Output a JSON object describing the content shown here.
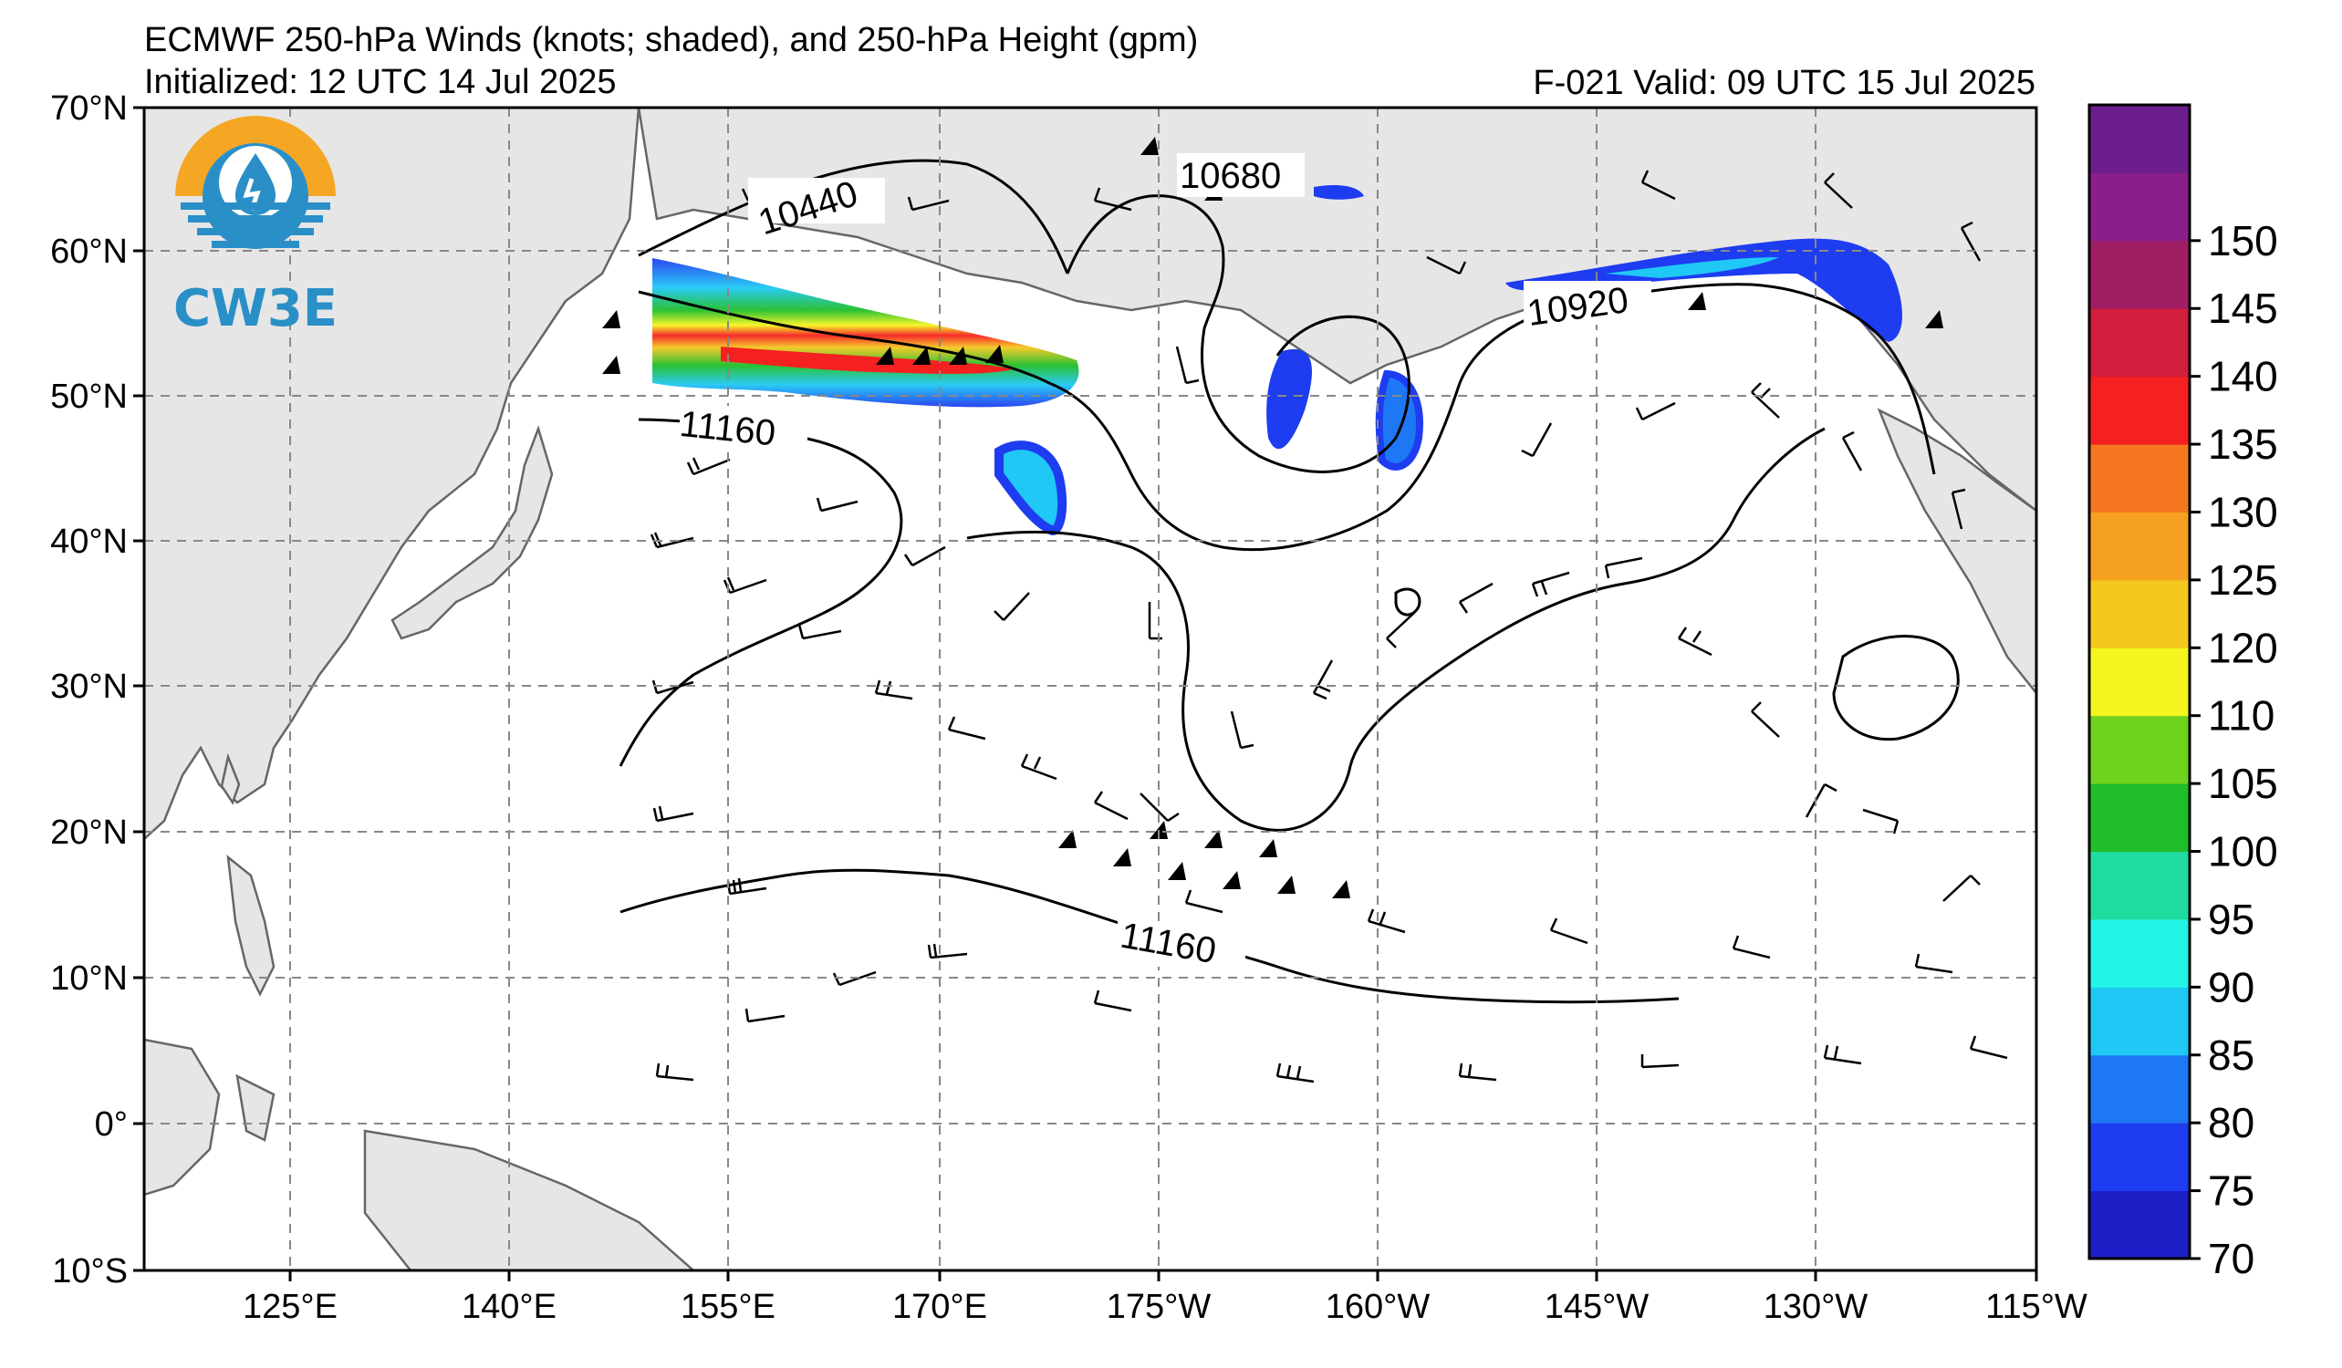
{
  "header": {
    "title": "ECMWF 250-hPa Winds (knots; shaded), and 250-hPa Height (gpm)",
    "initialized": "Initialized: 12 UTC 14 Jul 2025",
    "valid": "F-021  Valid: 09 UTC 15 Jul 2025"
  },
  "logo": {
    "text": "CW3E",
    "colors": {
      "sun": "#f5a623",
      "sea": "#2a8fc7"
    }
  },
  "map": {
    "lat_labels": [
      "70°N",
      "60°N",
      "50°N",
      "40°N",
      "30°N",
      "20°N",
      "10°N",
      "0°",
      "10°S"
    ],
    "lon_labels": [
      "125°E",
      "140°E",
      "155°E",
      "170°E",
      "175°W",
      "160°W",
      "145°W",
      "130°W",
      "115°W"
    ],
    "contour_labels": [
      "10440",
      "10680",
      "10920",
      "11160",
      "11160"
    ],
    "land_color": "#e6e6e6",
    "grid_style": "dashed gray"
  },
  "colorbar": {
    "labels": [
      "70",
      "75",
      "80",
      "85",
      "90",
      "95",
      "100",
      "105",
      "110",
      "120",
      "125",
      "130",
      "135",
      "140",
      "145",
      "150"
    ],
    "colors": [
      "#1f1fc8",
      "#1e3cf0",
      "#1e78f5",
      "#20c8f5",
      "#20f5e6",
      "#20dca0",
      "#20be28",
      "#6ed21e",
      "#f5f520",
      "#f5c820",
      "#f5a020",
      "#f57820",
      "#f52020",
      "#d21e3c",
      "#a01e64",
      "#8c1e8c",
      "#6e1e8c"
    ]
  }
}
